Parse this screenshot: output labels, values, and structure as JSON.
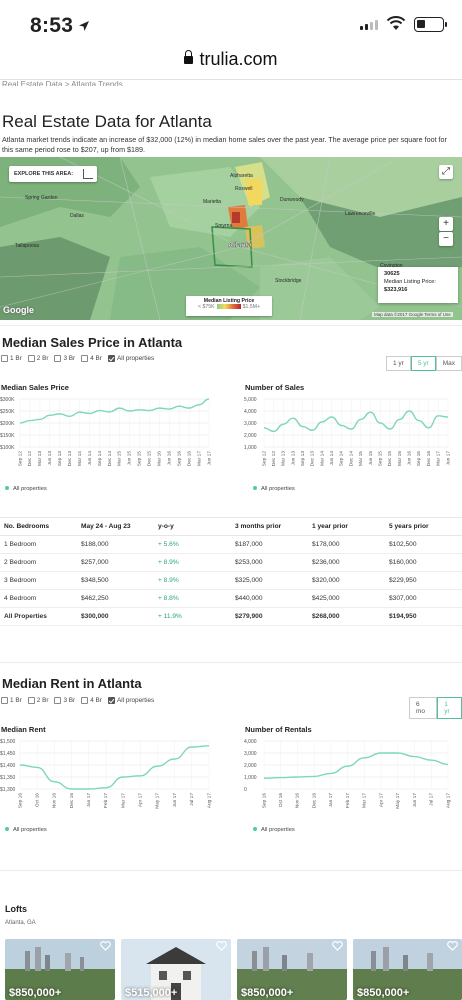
{
  "status_bar": {
    "time": "8:53"
  },
  "browser": {
    "url": "trulia.com"
  },
  "breadcrumb_partial": "Real Estate Data > Atlanta Trends",
  "page": {
    "title": "Real Estate Data for Atlanta",
    "subtitle": "Atlanta market trends indicate an increase of $32,000 (12%) in median home sales over the past year. The average price per square foot for this same period rose to $207, up from $189."
  },
  "map": {
    "explore_label": "EXPLORE THIS AREA:",
    "city_labels": [
      "Alpharetta",
      "Roswell",
      "Marietta",
      "Smyrna",
      "Atlanta",
      "Dunwoody",
      "Spring Garden",
      "Dallas",
      "Tallapoosa",
      "Lawrenceville",
      "Covington",
      "Stockbridge"
    ],
    "tooltip_zip": "30625",
    "tooltip_label": "Median Listing Price:",
    "tooltip_value": "$323,916",
    "legend_title": "Median Listing Price",
    "legend_min": "< $75K",
    "legend_max": "$1.5M+",
    "google_logo": "Google",
    "footer": "Map data ©2017 Google   Terms of Use",
    "accent_colors": [
      "#8fc98e",
      "#f3dd5c",
      "#e26b3b",
      "#b3262c"
    ]
  },
  "sales_section": {
    "title": "Median Sales Price in Atlanta",
    "filters": [
      {
        "label": "1 Br",
        "checked": false
      },
      {
        "label": "2 Br",
        "checked": false
      },
      {
        "label": "3 Br",
        "checked": false
      },
      {
        "label": "4 Br",
        "checked": false
      },
      {
        "label": "All properties",
        "checked": true
      }
    ],
    "ranges": [
      {
        "label": "1 yr",
        "active": false
      },
      {
        "label": "5 yr",
        "active": true
      },
      {
        "label": "Max",
        "active": false
      }
    ],
    "legend_label": "All properties"
  },
  "table": {
    "headers": [
      "No. Bedrooms",
      "May 24 - Aug 23",
      "y-o-y",
      "3 months prior",
      "1 year prior",
      "5 years prior"
    ],
    "rows": [
      [
        "1 Bedroom",
        "$188,000",
        "+ 5.6%",
        "$187,000",
        "$178,000",
        "$102,500"
      ],
      [
        "2 Bedroom",
        "$257,000",
        "+ 8.9%",
        "$253,000",
        "$236,000",
        "$160,000"
      ],
      [
        "3 Bedroom",
        "$348,500",
        "+ 8.9%",
        "$325,000",
        "$320,000",
        "$229,950"
      ],
      [
        "4 Bedroom",
        "$462,250",
        "+ 8.8%",
        "$440,000",
        "$425,000",
        "$307,000"
      ],
      [
        "All Properties",
        "$300,000",
        "+ 11.9%",
        "$279,900",
        "$268,000",
        "$194,950"
      ]
    ]
  },
  "rent_section": {
    "title": "Median Rent in Atlanta",
    "filters": [
      {
        "label": "1 Br",
        "checked": false
      },
      {
        "label": "2 Br",
        "checked": false
      },
      {
        "label": "3 Br",
        "checked": false
      },
      {
        "label": "4 Br",
        "checked": false
      },
      {
        "label": "All properties",
        "checked": true
      }
    ],
    "ranges": [
      {
        "label": "6 mo",
        "active": false
      },
      {
        "label": "1 yr",
        "active": true
      }
    ],
    "legend_label": "All properties"
  },
  "lofts": {
    "title": "Lofts",
    "location": "Atlanta, GA",
    "cards": [
      {
        "price": "$850,000+"
      },
      {
        "price": "$515,000+"
      },
      {
        "price": "$850,000+"
      },
      {
        "price": "$850,000+"
      }
    ]
  },
  "chart_data": [
    {
      "type": "line",
      "title": "Median Sales Price",
      "x": [
        "Sep 12",
        "Dec 12",
        "Mar 13",
        "Jun 13",
        "Sep 13",
        "Dec 13",
        "Mar 14",
        "Jun 14",
        "Sep 14",
        "Dec 14",
        "Mar 15",
        "Jun 15",
        "Sep 15",
        "Dec 15",
        "Mar 16",
        "Jun 16",
        "Sep 16",
        "Dec 16",
        "Mar 17",
        "Jun 17"
      ],
      "yticks": [
        "$300K",
        "$250K",
        "$200K",
        "$150K",
        "$100K"
      ],
      "ylim": [
        100000,
        300000
      ],
      "series": [
        {
          "name": "All properties",
          "values": [
            200000,
            210000,
            215000,
            232000,
            238000,
            228000,
            245000,
            240000,
            252000,
            246000,
            262000,
            250000,
            255000,
            252000,
            262000,
            258000,
            270000,
            262000,
            276000,
            300000
          ]
        }
      ],
      "color": "#7dd8b5"
    },
    {
      "type": "line",
      "title": "Number of Sales",
      "x": [
        "Sep 12",
        "Dec 12",
        "Mar 13",
        "Jun 13",
        "Sep 13",
        "Dec 13",
        "Mar 14",
        "Jun 14",
        "Sep 14",
        "Dec 14",
        "Mar 15",
        "Jun 15",
        "Sep 15",
        "Dec 15",
        "Mar 16",
        "Jun 16",
        "Sep 16",
        "Dec 16",
        "Mar 17",
        "Jun 17"
      ],
      "yticks": [
        "5,000",
        "4,000",
        "3,000",
        "2,000",
        "1,000"
      ],
      "ylim": [
        1000,
        5000
      ],
      "series": [
        {
          "name": "All properties",
          "values": [
            2600,
            2300,
            2900,
            3400,
            2700,
            2400,
            3100,
            3500,
            2800,
            2500,
            3300,
            3900,
            3000,
            2500,
            3300,
            4000,
            3200,
            2600,
            3600,
            3500
          ]
        }
      ],
      "color": "#7dd8b5"
    },
    {
      "type": "line",
      "title": "Median Rent",
      "x": [
        "Sep 16",
        "Oct 16",
        "Nov 16",
        "Dec 16",
        "Jan 17",
        "Feb 17",
        "Mar 17",
        "Apr 17",
        "May 17",
        "Jun 17",
        "Jul 17",
        "Aug 17"
      ],
      "yticks": [
        "$1,500",
        "$1,450",
        "$1,400",
        "$1,350",
        "$1,300"
      ],
      "ylim": [
        1300,
        1500
      ],
      "series": [
        {
          "name": "All properties",
          "values": [
            1400,
            1390,
            1330,
            1300,
            1300,
            1305,
            1350,
            1355,
            1395,
            1425,
            1475,
            1480
          ]
        }
      ],
      "color": "#7dd8b5"
    },
    {
      "type": "line",
      "title": "Number of Rentals",
      "x": [
        "Sep 16",
        "Oct 16",
        "Nov 16",
        "Dec 16",
        "Jan 17",
        "Feb 17",
        "Mar 17",
        "Apr 17",
        "May 17",
        "Jun 17",
        "Jul 17",
        "Aug 17"
      ],
      "yticks": [
        "4,000",
        "3,000",
        "2,000",
        "1,000",
        "0"
      ],
      "ylim": [
        0,
        4000
      ],
      "series": [
        {
          "name": "All properties",
          "values": [
            900,
            950,
            1000,
            1050,
            1300,
            1900,
            2600,
            3000,
            3000,
            2700,
            2400,
            2050
          ]
        }
      ],
      "color": "#7dd8b5"
    }
  ]
}
